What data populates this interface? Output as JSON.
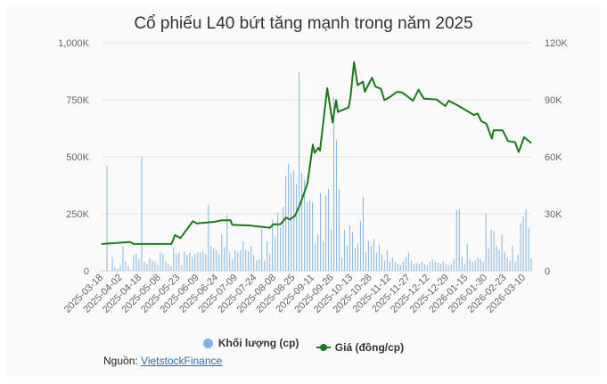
{
  "chart_data": {
    "type": "bar+line",
    "title": "Cổ phiếu L40 bứt tăng mạnh trong năm 2025",
    "x_tick_labels": [
      "2025-03-18",
      "2025-04-02",
      "2025-04-18",
      "2025-05-08",
      "2025-05-23",
      "2025-06-09",
      "2025-06-24",
      "2025-07-09",
      "2025-07-24",
      "2025-08-08",
      "2025-08-25",
      "2025-09-11",
      "2025-09-26",
      "2025-10-13",
      "2025-10-28",
      "2025-11-12",
      "2025-11-27",
      "2025-12-12",
      "2025-12-29",
      "2026-01-15",
      "2026-01-30",
      "2026-02-23",
      "2026-03-10"
    ],
    "y_left": {
      "ticks": [
        "0",
        "250K",
        "500K",
        "750K",
        "1,000K"
      ],
      "range": [
        0,
        1000
      ]
    },
    "y_right": {
      "ticks": [
        "0",
        "30K",
        "60K",
        "90K",
        "120K"
      ],
      "range": [
        0,
        120
      ]
    },
    "x_range": [
      0,
      240
    ],
    "series": [
      {
        "name": "Khối lượng (cp)",
        "type": "bar",
        "color": "#7cb5ec",
        "unit": "thousand shares",
        "values": [
          5,
          0,
          460,
          0,
          60,
          15,
          10,
          25,
          105,
          40,
          20,
          5,
          70,
          75,
          50,
          500,
          40,
          30,
          55,
          45,
          40,
          25,
          80,
          75,
          40,
          30,
          20,
          105,
          75,
          80,
          25,
          85,
          70,
          80,
          60,
          75,
          80,
          80,
          85,
          75,
          290,
          110,
          100,
          90,
          75,
          160,
          105,
          245,
          80,
          50,
          90,
          80,
          90,
          130,
          90,
          85,
          110,
          70,
          45,
          50,
          185,
          45,
          130,
          75,
          225,
          150,
          255,
          190,
          280,
          415,
          470,
          430,
          440,
          380,
          870,
          430,
          400,
          300,
          310,
          300,
          120,
          160,
          340,
          130,
          330,
          360,
          180,
          760,
          575,
          360,
          60,
          180,
          110,
          200,
          170,
          100,
          120,
          220,
          325,
          80,
          130,
          110,
          140,
          80,
          115,
          70,
          45,
          90,
          40,
          60,
          40,
          30,
          25,
          40,
          60,
          80,
          45,
          30,
          35,
          30,
          40,
          30,
          25,
          40,
          50,
          40,
          35,
          30,
          40,
          30,
          25,
          30,
          50,
          265,
          270,
          60,
          30,
          120,
          50,
          40,
          45,
          60,
          50,
          40,
          250,
          100,
          180,
          175,
          110,
          90,
          160,
          80,
          60,
          45,
          110,
          40,
          70,
          210,
          240,
          270,
          190,
          55
        ]
      },
      {
        "name": "Giá (đồng/cp)",
        "type": "line",
        "color": "#1a7a1a",
        "unit": "thousand VND",
        "points": [
          [
            0,
            14.1
          ],
          [
            16,
            15.2
          ],
          [
            18,
            14.1
          ],
          [
            39,
            14.1
          ],
          [
            41,
            18.8
          ],
          [
            44,
            17.2
          ],
          [
            51,
            26.1
          ],
          [
            53,
            25
          ],
          [
            63,
            25.8
          ],
          [
            67,
            26.6
          ],
          [
            72,
            26.6
          ],
          [
            73,
            24.2
          ],
          [
            82,
            23.9
          ],
          [
            94,
            22.7
          ],
          [
            96,
            24.5
          ],
          [
            100,
            24.5
          ],
          [
            103,
            28.1
          ],
          [
            105,
            27
          ],
          [
            108,
            28.9
          ],
          [
            111,
            35.2
          ],
          [
            115,
            46.1
          ],
          [
            118,
            66.4
          ],
          [
            119,
            62
          ],
          [
            121,
            64.8
          ],
          [
            122,
            63.3
          ],
          [
            126,
            96.1
          ],
          [
            129,
            78.1
          ],
          [
            131,
            89.8
          ],
          [
            132,
            83.6
          ],
          [
            135,
            84.8
          ],
          [
            138,
            85.9
          ],
          [
            139,
            91.4
          ],
          [
            141,
            109.8
          ],
          [
            143,
            97.7
          ],
          [
            146,
            99.5
          ],
          [
            147,
            94.2
          ],
          [
            151,
            101.6
          ],
          [
            153,
            96.9
          ],
          [
            156,
            95.8
          ],
          [
            158,
            89.8
          ],
          [
            161,
            91.4
          ],
          [
            165,
            94.2
          ],
          [
            168,
            93.8
          ],
          [
            174,
            89.5
          ],
          [
            177,
            95.3
          ],
          [
            180,
            90.6
          ],
          [
            187,
            90.2
          ],
          [
            192,
            86.7
          ],
          [
            194,
            89.5
          ],
          [
            199,
            87
          ],
          [
            203,
            84.8
          ],
          [
            208,
            82
          ],
          [
            210,
            82.8
          ],
          [
            212,
            78.9
          ],
          [
            215,
            77.3
          ],
          [
            218,
            69.5
          ],
          [
            219,
            73.9
          ],
          [
            224,
            73.9
          ],
          [
            227,
            68.3
          ],
          [
            231,
            67.7
          ],
          [
            233,
            62.5
          ],
          [
            236,
            70.3
          ],
          [
            240,
            67.2
          ]
        ]
      }
    ],
    "legend": {
      "position": "bottom",
      "items": [
        "Khối lượng (cp)",
        "Giá (đồng/cp)"
      ]
    },
    "grid": true
  },
  "source": {
    "label": "Nguồn:",
    "link": "VietstockFinance"
  }
}
